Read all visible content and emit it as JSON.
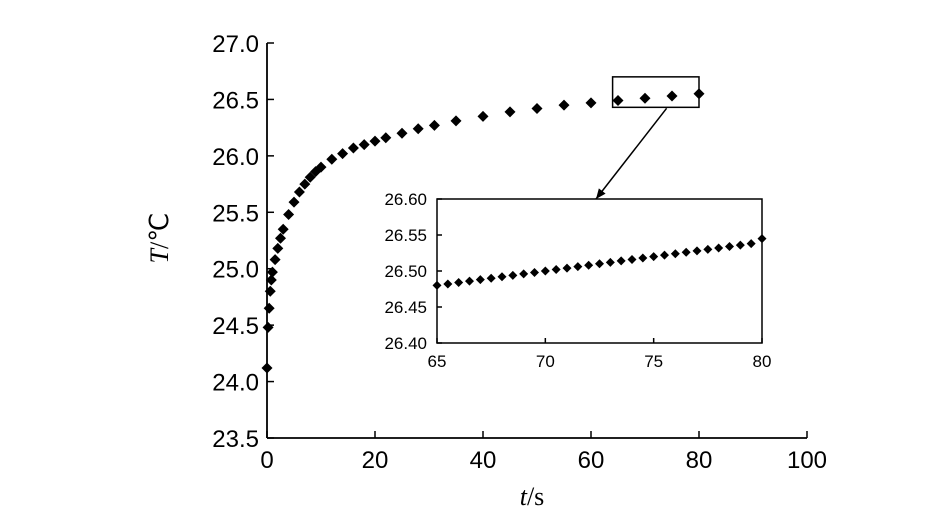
{
  "chart_data": [
    {
      "type": "scatter",
      "marker": "diamond",
      "xlabel_var": "t",
      "xlabel_unit": "/s",
      "ylabel_var": "T",
      "ylabel_unit": "/℃",
      "xlim": [
        0,
        100
      ],
      "ylim": [
        23.5,
        27.0
      ],
      "x_ticks": [
        "0",
        "20",
        "40",
        "60",
        "80",
        "100"
      ],
      "y_ticks": [
        "23.5",
        "24.0",
        "24.5",
        "25.0",
        "25.5",
        "26.0",
        "26.5",
        "27.0"
      ],
      "grid": false,
      "series": [
        {
          "x": [
            0,
            0.2,
            0.4,
            0.6,
            0.8,
            1,
            1.5,
            2,
            2.5,
            3,
            4,
            5,
            6,
            7,
            8,
            9,
            10,
            12,
            14,
            16,
            18,
            20,
            22,
            25,
            28,
            31,
            35,
            40,
            45,
            50,
            55,
            60,
            65,
            70,
            75,
            80
          ],
          "y": [
            24.12,
            24.48,
            24.65,
            24.8,
            24.9,
            24.97,
            25.08,
            25.18,
            25.27,
            25.35,
            25.48,
            25.59,
            25.68,
            25.75,
            25.81,
            25.86,
            25.9,
            25.97,
            26.02,
            26.07,
            26.1,
            26.13,
            26.16,
            26.2,
            26.24,
            26.27,
            26.31,
            26.35,
            26.39,
            26.42,
            26.45,
            26.47,
            26.49,
            26.51,
            26.53,
            26.55
          ]
        }
      ],
      "zoom_box": {
        "x": [
          64,
          80
        ],
        "y": [
          26.43,
          26.7
        ]
      }
    },
    {
      "type": "scatter",
      "marker": "diamond",
      "xlim": [
        65,
        80
      ],
      "ylim": [
        26.4,
        26.6
      ],
      "x_ticks": [
        "65",
        "70",
        "75",
        "80"
      ],
      "y_ticks": [
        "26.40",
        "26.45",
        "26.50",
        "26.55",
        "26.60"
      ],
      "grid": false,
      "series": [
        {
          "x": [
            65,
            65.5,
            66,
            66.5,
            67,
            67.5,
            68,
            68.5,
            69,
            69.5,
            70,
            70.5,
            71,
            71.5,
            72,
            72.5,
            73,
            73.5,
            74,
            74.5,
            75,
            75.5,
            76,
            76.5,
            77,
            77.5,
            78,
            78.5,
            79,
            79.5,
            80
          ],
          "y": [
            26.48,
            26.482,
            26.484,
            26.486,
            26.488,
            26.49,
            26.492,
            26.494,
            26.496,
            26.498,
            26.5,
            26.502,
            26.504,
            26.506,
            26.508,
            26.51,
            26.512,
            26.514,
            26.516,
            26.518,
            26.52,
            26.522,
            26.524,
            26.526,
            26.528,
            26.53,
            26.532,
            26.534,
            26.536,
            26.538,
            26.545
          ]
        }
      ]
    }
  ]
}
